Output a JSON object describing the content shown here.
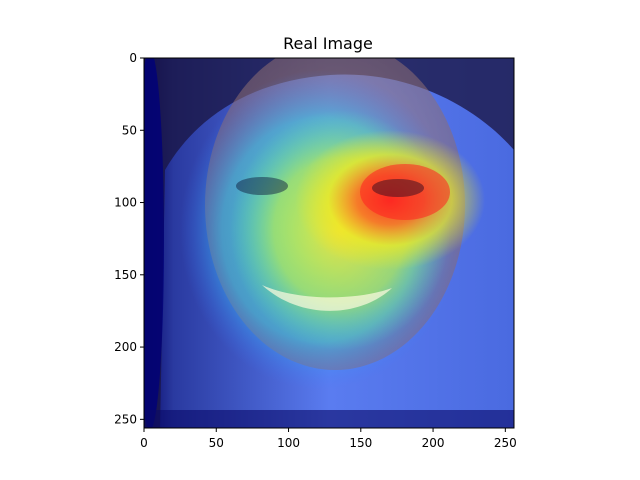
{
  "chart_data": {
    "type": "heatmap",
    "title": "Real Image",
    "xlabel": "",
    "ylabel": "",
    "xlim": [
      0,
      256
    ],
    "ylim": [
      256,
      0
    ],
    "x_ticks": [
      0,
      50,
      100,
      150,
      200,
      250
    ],
    "y_ticks": [
      0,
      50,
      100,
      150,
      200,
      250
    ],
    "x_tick_labels": [
      "0",
      "50",
      "100",
      "150",
      "200",
      "250"
    ],
    "y_tick_labels": [
      "0",
      "50",
      "100",
      "150",
      "200",
      "250"
    ],
    "grid": false,
    "colormap": "jet",
    "overlay_on": "face photograph",
    "hotspots": [
      {
        "x": 180,
        "y": 110,
        "intensity": 1.0
      },
      {
        "x": 150,
        "y": 130,
        "intensity": 0.8
      },
      {
        "x": 130,
        "y": 160,
        "intensity": 0.6
      },
      {
        "x": 115,
        "y": 200,
        "intensity": 0.45
      }
    ],
    "colors": {
      "background": "#ffffff",
      "cold": "#00007f",
      "cool": "#3f6fff",
      "mid": "#2fe0c0",
      "warm": "#f0f020",
      "hot": "#ff3020",
      "hair": "#1a1430"
    }
  }
}
